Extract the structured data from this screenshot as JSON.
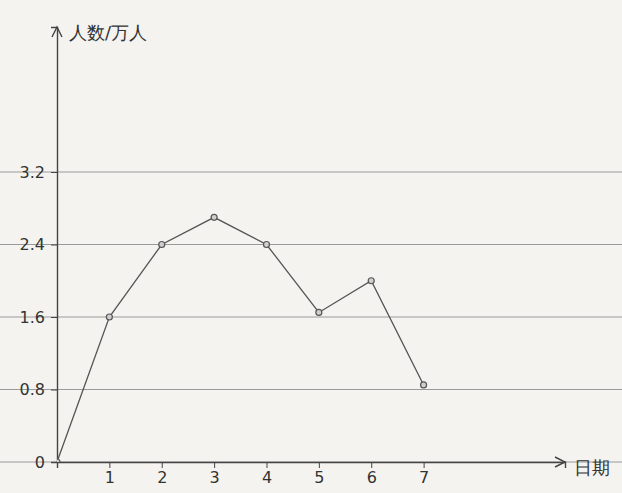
{
  "chart_data": {
    "type": "line",
    "x_label": "日期",
    "y_label": "人数/万人",
    "x": [
      0,
      1,
      2,
      3,
      4,
      5,
      6,
      7
    ],
    "values": [
      0,
      1.6,
      2.4,
      2.7,
      2.4,
      1.65,
      2.0,
      0.85
    ],
    "color": "#555555",
    "marker": "circle",
    "xlim": [
      0,
      9.7
    ],
    "ylim": [
      0,
      4.8
    ],
    "xticks": [
      1,
      2,
      3,
      4,
      5,
      6,
      7
    ],
    "yticks": [
      0,
      0.8,
      1.6,
      2.4,
      3.2
    ],
    "grid": true
  }
}
